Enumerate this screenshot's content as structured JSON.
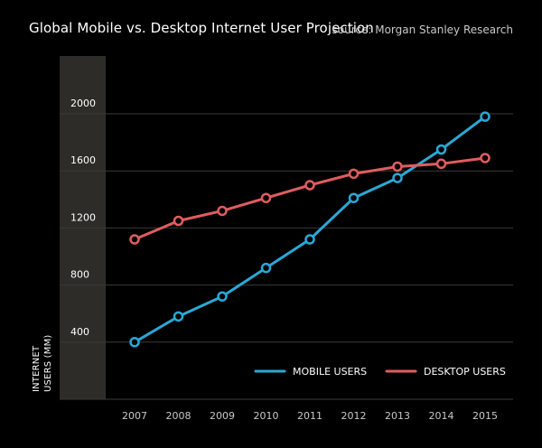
{
  "header": {
    "title": "Global Mobile vs. Desktop Internet User Projection",
    "source": "source: Morgan Stanley Research"
  },
  "colors": {
    "background": "#000000",
    "band": "#2d2c29",
    "grid": "#3a3a3a",
    "mobile": "#29a8d6",
    "desktop": "#e05d5f"
  },
  "chart_data": {
    "type": "line",
    "title": "Global Mobile vs. Desktop Internet User Projection",
    "ylabel_lines": [
      "INTERNET",
      "USERS (MM)"
    ],
    "xlabel": "",
    "x": [
      "2007",
      "2008",
      "2009",
      "2010",
      "2011",
      "2012",
      "2013",
      "2014",
      "2015"
    ],
    "yticks": [
      400,
      800,
      1200,
      1600,
      2000
    ],
    "ylim": [
      0,
      2400
    ],
    "grid": true,
    "legend_position": "bottom-right",
    "series": [
      {
        "name": "MOBILE USERS",
        "color": "#29a8d6",
        "values": [
          400,
          580,
          720,
          920,
          1120,
          1410,
          1550,
          1750,
          1980
        ]
      },
      {
        "name": "DESKTOP USERS",
        "color": "#e05d5f",
        "values": [
          1120,
          1250,
          1320,
          1410,
          1500,
          1580,
          1630,
          1650,
          1690
        ]
      }
    ]
  }
}
